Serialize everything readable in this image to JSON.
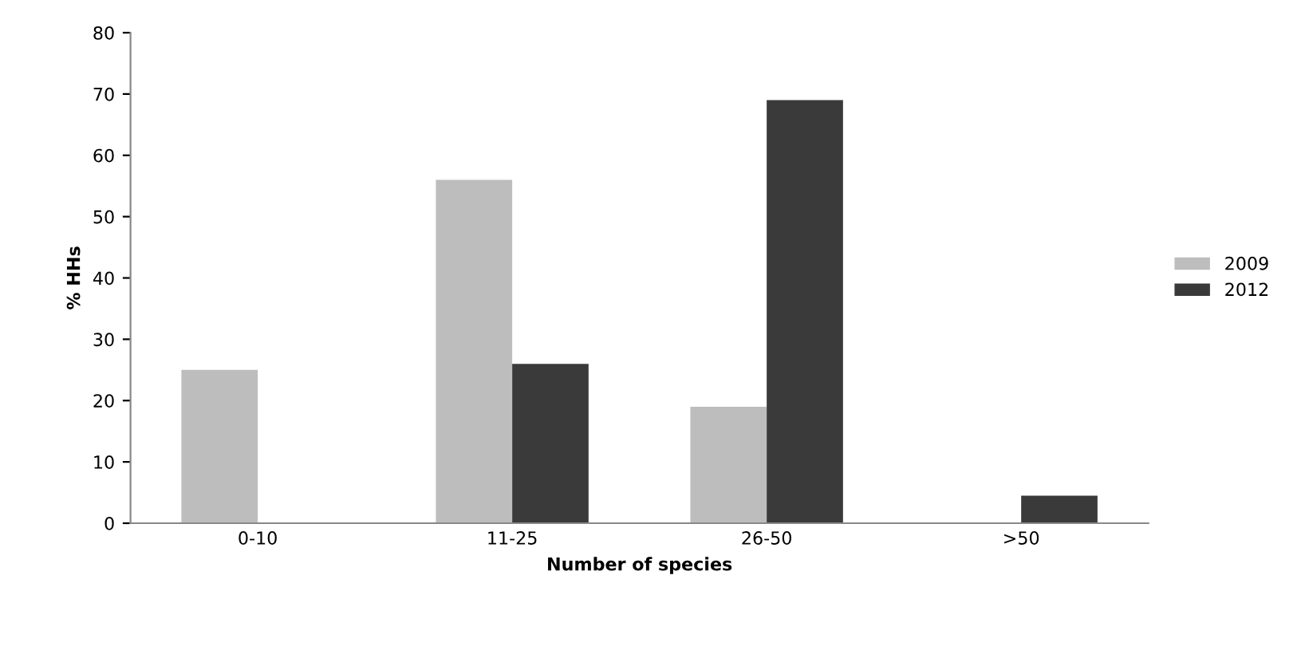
{
  "chart_data": {
    "type": "bar",
    "xlabel": "Number of species",
    "ylabel": "% HHs",
    "categories": [
      "0-10",
      "11-25",
      "26-50",
      ">50"
    ],
    "series": [
      {
        "name": "2009",
        "color": "#bdbdbd",
        "values": [
          25,
          56,
          19,
          null
        ]
      },
      {
        "name": "2012",
        "color": "#3a3a3a",
        "values": [
          null,
          26,
          69,
          4.5
        ]
      }
    ],
    "ylim": [
      0,
      80
    ],
    "yticks": [
      0,
      10,
      20,
      30,
      40,
      50,
      60,
      70,
      80
    ],
    "grid": false,
    "legend": "right"
  }
}
